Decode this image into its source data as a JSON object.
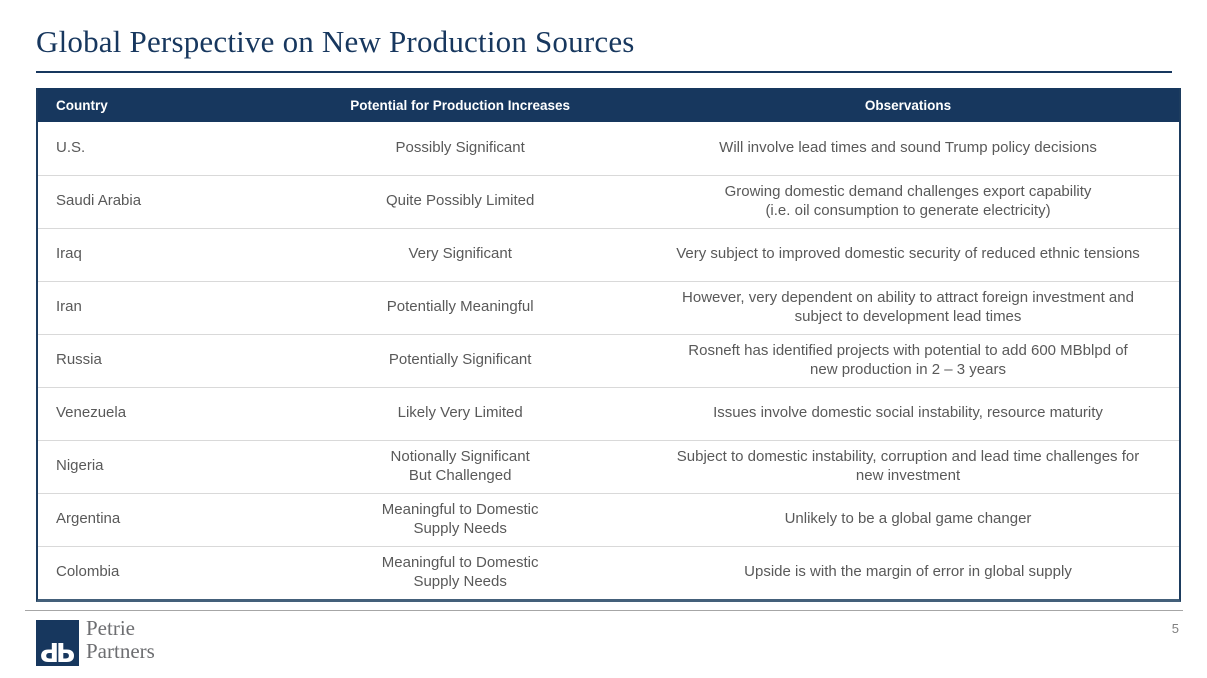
{
  "slide": {
    "title": "Global Perspective on New Production Sources",
    "page_number": "5"
  },
  "logo": {
    "monogram_left": "P",
    "monogram_right": "P",
    "name_line1": "Petrie",
    "name_line2": "Partners"
  },
  "table": {
    "headers": [
      "Country",
      "Potential for Production Increases",
      "Observations"
    ],
    "rows": [
      {
        "country": "U.S.",
        "potential": "Possibly Significant",
        "observations": "Will involve lead times and sound Trump policy decisions"
      },
      {
        "country": "Saudi Arabia",
        "potential": "Quite Possibly Limited",
        "observations": "Growing domestic demand challenges export capability\n(i.e. oil consumption to generate electricity)"
      },
      {
        "country": "Iraq",
        "potential": "Very Significant",
        "observations": "Very subject to improved domestic security of reduced ethnic tensions"
      },
      {
        "country": "Iran",
        "potential": "Potentially Meaningful",
        "observations": "However, very dependent on ability to attract foreign investment and\nsubject to development lead times"
      },
      {
        "country": "Russia",
        "potential": "Potentially Significant",
        "observations": "Rosneft has identified projects with potential to add 600 MBblpd of\nnew production in 2 – 3 years"
      },
      {
        "country": "Venezuela",
        "potential": "Likely Very Limited",
        "observations": "Issues involve domestic social instability, resource maturity"
      },
      {
        "country": "Nigeria",
        "potential": "Notionally Significant\nBut Challenged",
        "observations": "Subject to domestic instability, corruption and lead time challenges for\nnew investment"
      },
      {
        "country": "Argentina",
        "potential": "Meaningful to Domestic\nSupply Needs",
        "observations": "Unlikely to be a global game changer"
      },
      {
        "country": "Colombia",
        "potential": "Meaningful to Domestic\nSupply Needs",
        "observations": "Upside is with the margin of error in global supply"
      }
    ]
  },
  "colors": {
    "header_bg": "#17375E",
    "title_text": "#17375E",
    "body_text": "#595959",
    "row_divider": "#D9D9D9",
    "table_border": "#44607A",
    "footer_rule": "#A6A6A6",
    "logo_square": "#17375E",
    "logo_text": "#6D6E71"
  }
}
